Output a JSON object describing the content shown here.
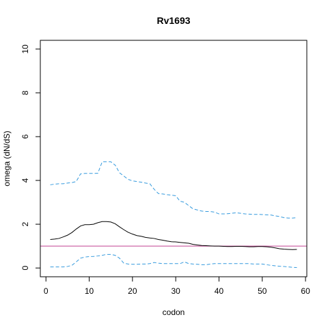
{
  "chart_data": {
    "type": "line",
    "title": "Rv1693",
    "xlabel": "codon",
    "ylabel": "omega (dN/dS)",
    "xlim": [
      -1.3,
      60.3
    ],
    "ylim": [
      -0.4,
      10.4
    ],
    "xticks": [
      0,
      10,
      20,
      30,
      40,
      50,
      60
    ],
    "yticks": [
      0,
      2,
      4,
      6,
      8,
      10
    ],
    "grid": false,
    "legend": "none",
    "reference_line": {
      "y": 1,
      "color": "#c04090"
    },
    "series": [
      {
        "role": "estimate",
        "color": "#000000",
        "style": "solid",
        "points": [
          [
            1,
            1.3
          ],
          [
            2,
            1.32
          ],
          [
            3,
            1.35
          ],
          [
            4,
            1.42
          ],
          [
            5,
            1.5
          ],
          [
            6,
            1.62
          ],
          [
            7,
            1.78
          ],
          [
            8,
            1.92
          ],
          [
            9,
            1.98
          ],
          [
            10,
            1.98
          ],
          [
            11,
            2.0
          ],
          [
            12,
            2.07
          ],
          [
            13,
            2.12
          ],
          [
            14,
            2.12
          ],
          [
            15,
            2.1
          ],
          [
            16,
            2.02
          ],
          [
            17,
            1.88
          ],
          [
            18,
            1.75
          ],
          [
            19,
            1.63
          ],
          [
            20,
            1.55
          ],
          [
            21,
            1.48
          ],
          [
            22,
            1.45
          ],
          [
            23,
            1.4
          ],
          [
            24,
            1.37
          ],
          [
            25,
            1.35
          ],
          [
            26,
            1.3
          ],
          [
            27,
            1.27
          ],
          [
            28,
            1.23
          ],
          [
            29,
            1.2
          ],
          [
            30,
            1.19
          ],
          [
            31,
            1.17
          ],
          [
            32,
            1.15
          ],
          [
            33,
            1.13
          ],
          [
            34,
            1.08
          ],
          [
            35,
            1.05
          ],
          [
            36,
            1.03
          ],
          [
            37,
            1.02
          ],
          [
            38,
            1.01
          ],
          [
            39,
            1.0
          ],
          [
            40,
            1.0
          ],
          [
            41,
            0.99
          ],
          [
            42,
            0.98
          ],
          [
            43,
            0.98
          ],
          [
            44,
            0.99
          ],
          [
            45,
            0.99
          ],
          [
            46,
            0.98
          ],
          [
            47,
            0.97
          ],
          [
            48,
            0.97
          ],
          [
            49,
            0.98
          ],
          [
            50,
            0.98
          ],
          [
            51,
            0.97
          ],
          [
            52,
            0.95
          ],
          [
            53,
            0.92
          ],
          [
            54,
            0.88
          ],
          [
            55,
            0.86
          ],
          [
            56,
            0.85
          ],
          [
            57,
            0.84
          ],
          [
            58,
            0.85
          ]
        ]
      },
      {
        "role": "upper",
        "color": "#3399dd",
        "style": "dashed",
        "points": [
          [
            1,
            3.8
          ],
          [
            2,
            3.83
          ],
          [
            3,
            3.85
          ],
          [
            4,
            3.85
          ],
          [
            5,
            3.88
          ],
          [
            6,
            3.9
          ],
          [
            7,
            3.95
          ],
          [
            8,
            4.3
          ],
          [
            9,
            4.32
          ],
          [
            10,
            4.32
          ],
          [
            11,
            4.32
          ],
          [
            12,
            4.33
          ],
          [
            13,
            4.85
          ],
          [
            14,
            4.85
          ],
          [
            15,
            4.85
          ],
          [
            16,
            4.7
          ],
          [
            17,
            4.35
          ],
          [
            18,
            4.2
          ],
          [
            19,
            4.05
          ],
          [
            20,
            3.98
          ],
          [
            21,
            3.95
          ],
          [
            22,
            3.92
          ],
          [
            23,
            3.88
          ],
          [
            24,
            3.85
          ],
          [
            25,
            3.6
          ],
          [
            26,
            3.4
          ],
          [
            27,
            3.38
          ],
          [
            28,
            3.35
          ],
          [
            29,
            3.33
          ],
          [
            30,
            3.3
          ],
          [
            31,
            3.05
          ],
          [
            32,
            3.0
          ],
          [
            33,
            2.85
          ],
          [
            34,
            2.7
          ],
          [
            35,
            2.65
          ],
          [
            36,
            2.6
          ],
          [
            37,
            2.58
          ],
          [
            38,
            2.58
          ],
          [
            39,
            2.55
          ],
          [
            40,
            2.47
          ],
          [
            41,
            2.47
          ],
          [
            42,
            2.48
          ],
          [
            43,
            2.5
          ],
          [
            44,
            2.52
          ],
          [
            45,
            2.5
          ],
          [
            46,
            2.47
          ],
          [
            47,
            2.46
          ],
          [
            48,
            2.45
          ],
          [
            49,
            2.45
          ],
          [
            50,
            2.44
          ],
          [
            51,
            2.43
          ],
          [
            52,
            2.42
          ],
          [
            53,
            2.38
          ],
          [
            54,
            2.35
          ],
          [
            55,
            2.3
          ],
          [
            56,
            2.28
          ],
          [
            57,
            2.28
          ],
          [
            58,
            2.3
          ]
        ]
      },
      {
        "role": "lower",
        "color": "#3399dd",
        "style": "dashed",
        "points": [
          [
            1,
            0.05
          ],
          [
            2,
            0.05
          ],
          [
            3,
            0.05
          ],
          [
            4,
            0.05
          ],
          [
            5,
            0.07
          ],
          [
            6,
            0.12
          ],
          [
            7,
            0.28
          ],
          [
            8,
            0.45
          ],
          [
            9,
            0.5
          ],
          [
            10,
            0.52
          ],
          [
            11,
            0.53
          ],
          [
            12,
            0.55
          ],
          [
            13,
            0.58
          ],
          [
            14,
            0.62
          ],
          [
            15,
            0.62
          ],
          [
            16,
            0.58
          ],
          [
            17,
            0.45
          ],
          [
            18,
            0.22
          ],
          [
            19,
            0.18
          ],
          [
            20,
            0.17
          ],
          [
            21,
            0.17
          ],
          [
            22,
            0.18
          ],
          [
            23,
            0.18
          ],
          [
            24,
            0.2
          ],
          [
            25,
            0.25
          ],
          [
            26,
            0.22
          ],
          [
            27,
            0.2
          ],
          [
            28,
            0.2
          ],
          [
            29,
            0.2
          ],
          [
            30,
            0.2
          ],
          [
            31,
            0.2
          ],
          [
            32,
            0.28
          ],
          [
            33,
            0.2
          ],
          [
            34,
            0.18
          ],
          [
            35,
            0.17
          ],
          [
            36,
            0.15
          ],
          [
            37,
            0.15
          ],
          [
            38,
            0.18
          ],
          [
            39,
            0.2
          ],
          [
            40,
            0.2
          ],
          [
            41,
            0.2
          ],
          [
            42,
            0.2
          ],
          [
            43,
            0.2
          ],
          [
            44,
            0.2
          ],
          [
            45,
            0.2
          ],
          [
            46,
            0.2
          ],
          [
            47,
            0.2
          ],
          [
            48,
            0.18
          ],
          [
            49,
            0.18
          ],
          [
            50,
            0.18
          ],
          [
            51,
            0.15
          ],
          [
            52,
            0.12
          ],
          [
            53,
            0.1
          ],
          [
            54,
            0.08
          ],
          [
            55,
            0.07
          ],
          [
            56,
            0.05
          ],
          [
            57,
            0.03
          ],
          [
            58,
            0.02
          ]
        ]
      }
    ]
  }
}
